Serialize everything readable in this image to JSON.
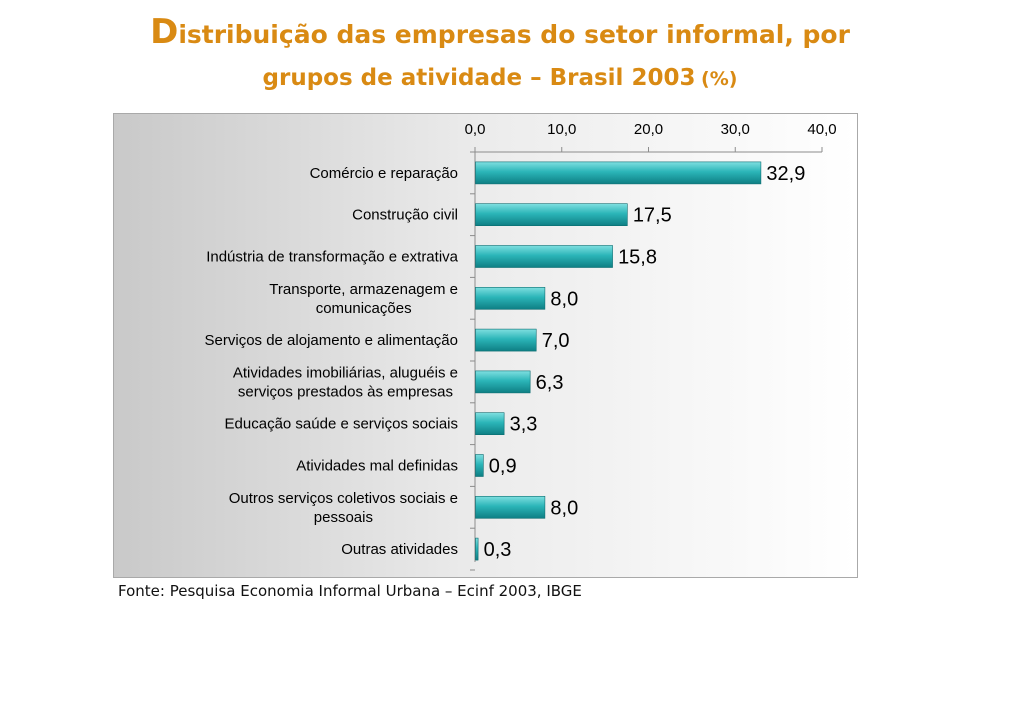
{
  "title": {
    "initial": "D",
    "line1_rest": "istribuição das empresas do setor informal, por",
    "line2": "grupos de atividade – Brasil 2003",
    "unit": "(%)"
  },
  "source": "Fonte: Pesquisa Economia Informal Urbana – Ecinf 2003, IBGE",
  "colors": {
    "title": "#D98A13",
    "bar": "#2BB5B8",
    "bar_dark": "#0E7F84"
  },
  "chart_data": {
    "type": "bar",
    "orientation": "horizontal",
    "xlim": [
      0,
      40
    ],
    "x_ticks": [
      "0,0",
      "10,0",
      "20,0",
      "30,0",
      "40,0"
    ],
    "x_tick_values": [
      0,
      10,
      20,
      30,
      40
    ],
    "x_axis_position": "top",
    "grid": false,
    "categories": [
      [
        "Comércio e reparação"
      ],
      [
        "Construção civil"
      ],
      [
        "Indústria de transformação e extrativa"
      ],
      [
        "Transporte, armazenagem e",
        "comunicações"
      ],
      [
        "Serviços de alojamento e alimentação"
      ],
      [
        "Atividades imobiliárias, aluguéis e",
        "serviços prestados às empresas"
      ],
      [
        "Educação saúde e serviços sociais"
      ],
      [
        "Atividades mal definidas"
      ],
      [
        "Outros serviços coletivos sociais e",
        "pessoais"
      ],
      [
        "Outras atividades"
      ]
    ],
    "values": [
      32.9,
      17.5,
      15.8,
      8.0,
      7.0,
      6.3,
      3.3,
      0.9,
      8.0,
      0.3
    ],
    "value_labels": [
      "32,9",
      "17,5",
      "15,8",
      "8,0",
      "7,0",
      "6,3",
      "3,3",
      "0,9",
      "8,0",
      "0,3"
    ]
  }
}
